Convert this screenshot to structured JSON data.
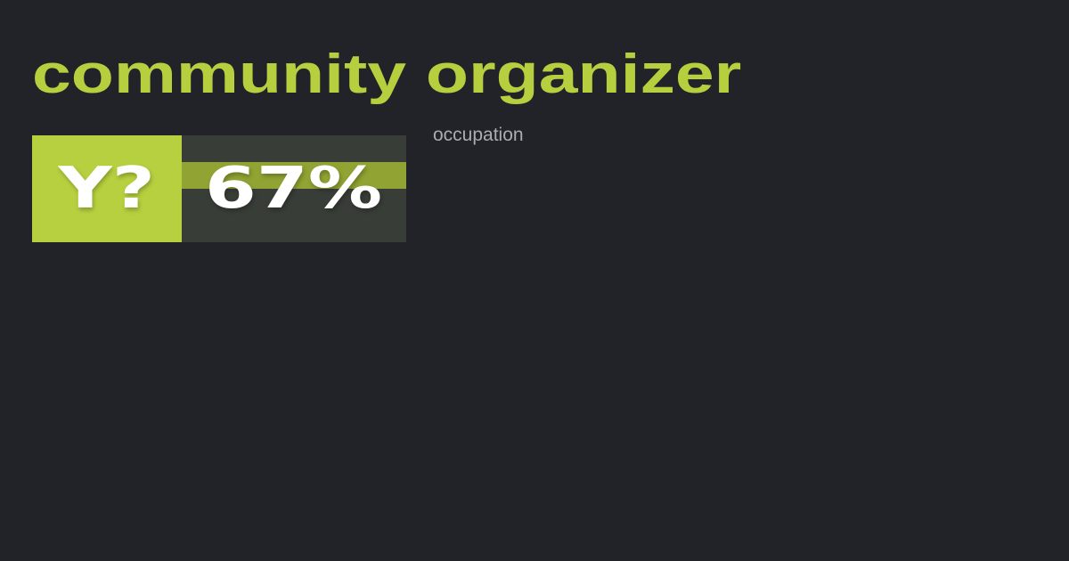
{
  "title": "community organizer",
  "badge": {
    "text": "Y?"
  },
  "score": {
    "text": "67%",
    "band_fill_percent": 100
  },
  "label": "occupation",
  "colors": {
    "background": "#212328",
    "accent": "#b7cf3f",
    "band": "#90a333",
    "panel": "#393d37",
    "label": "#a9adb1"
  }
}
